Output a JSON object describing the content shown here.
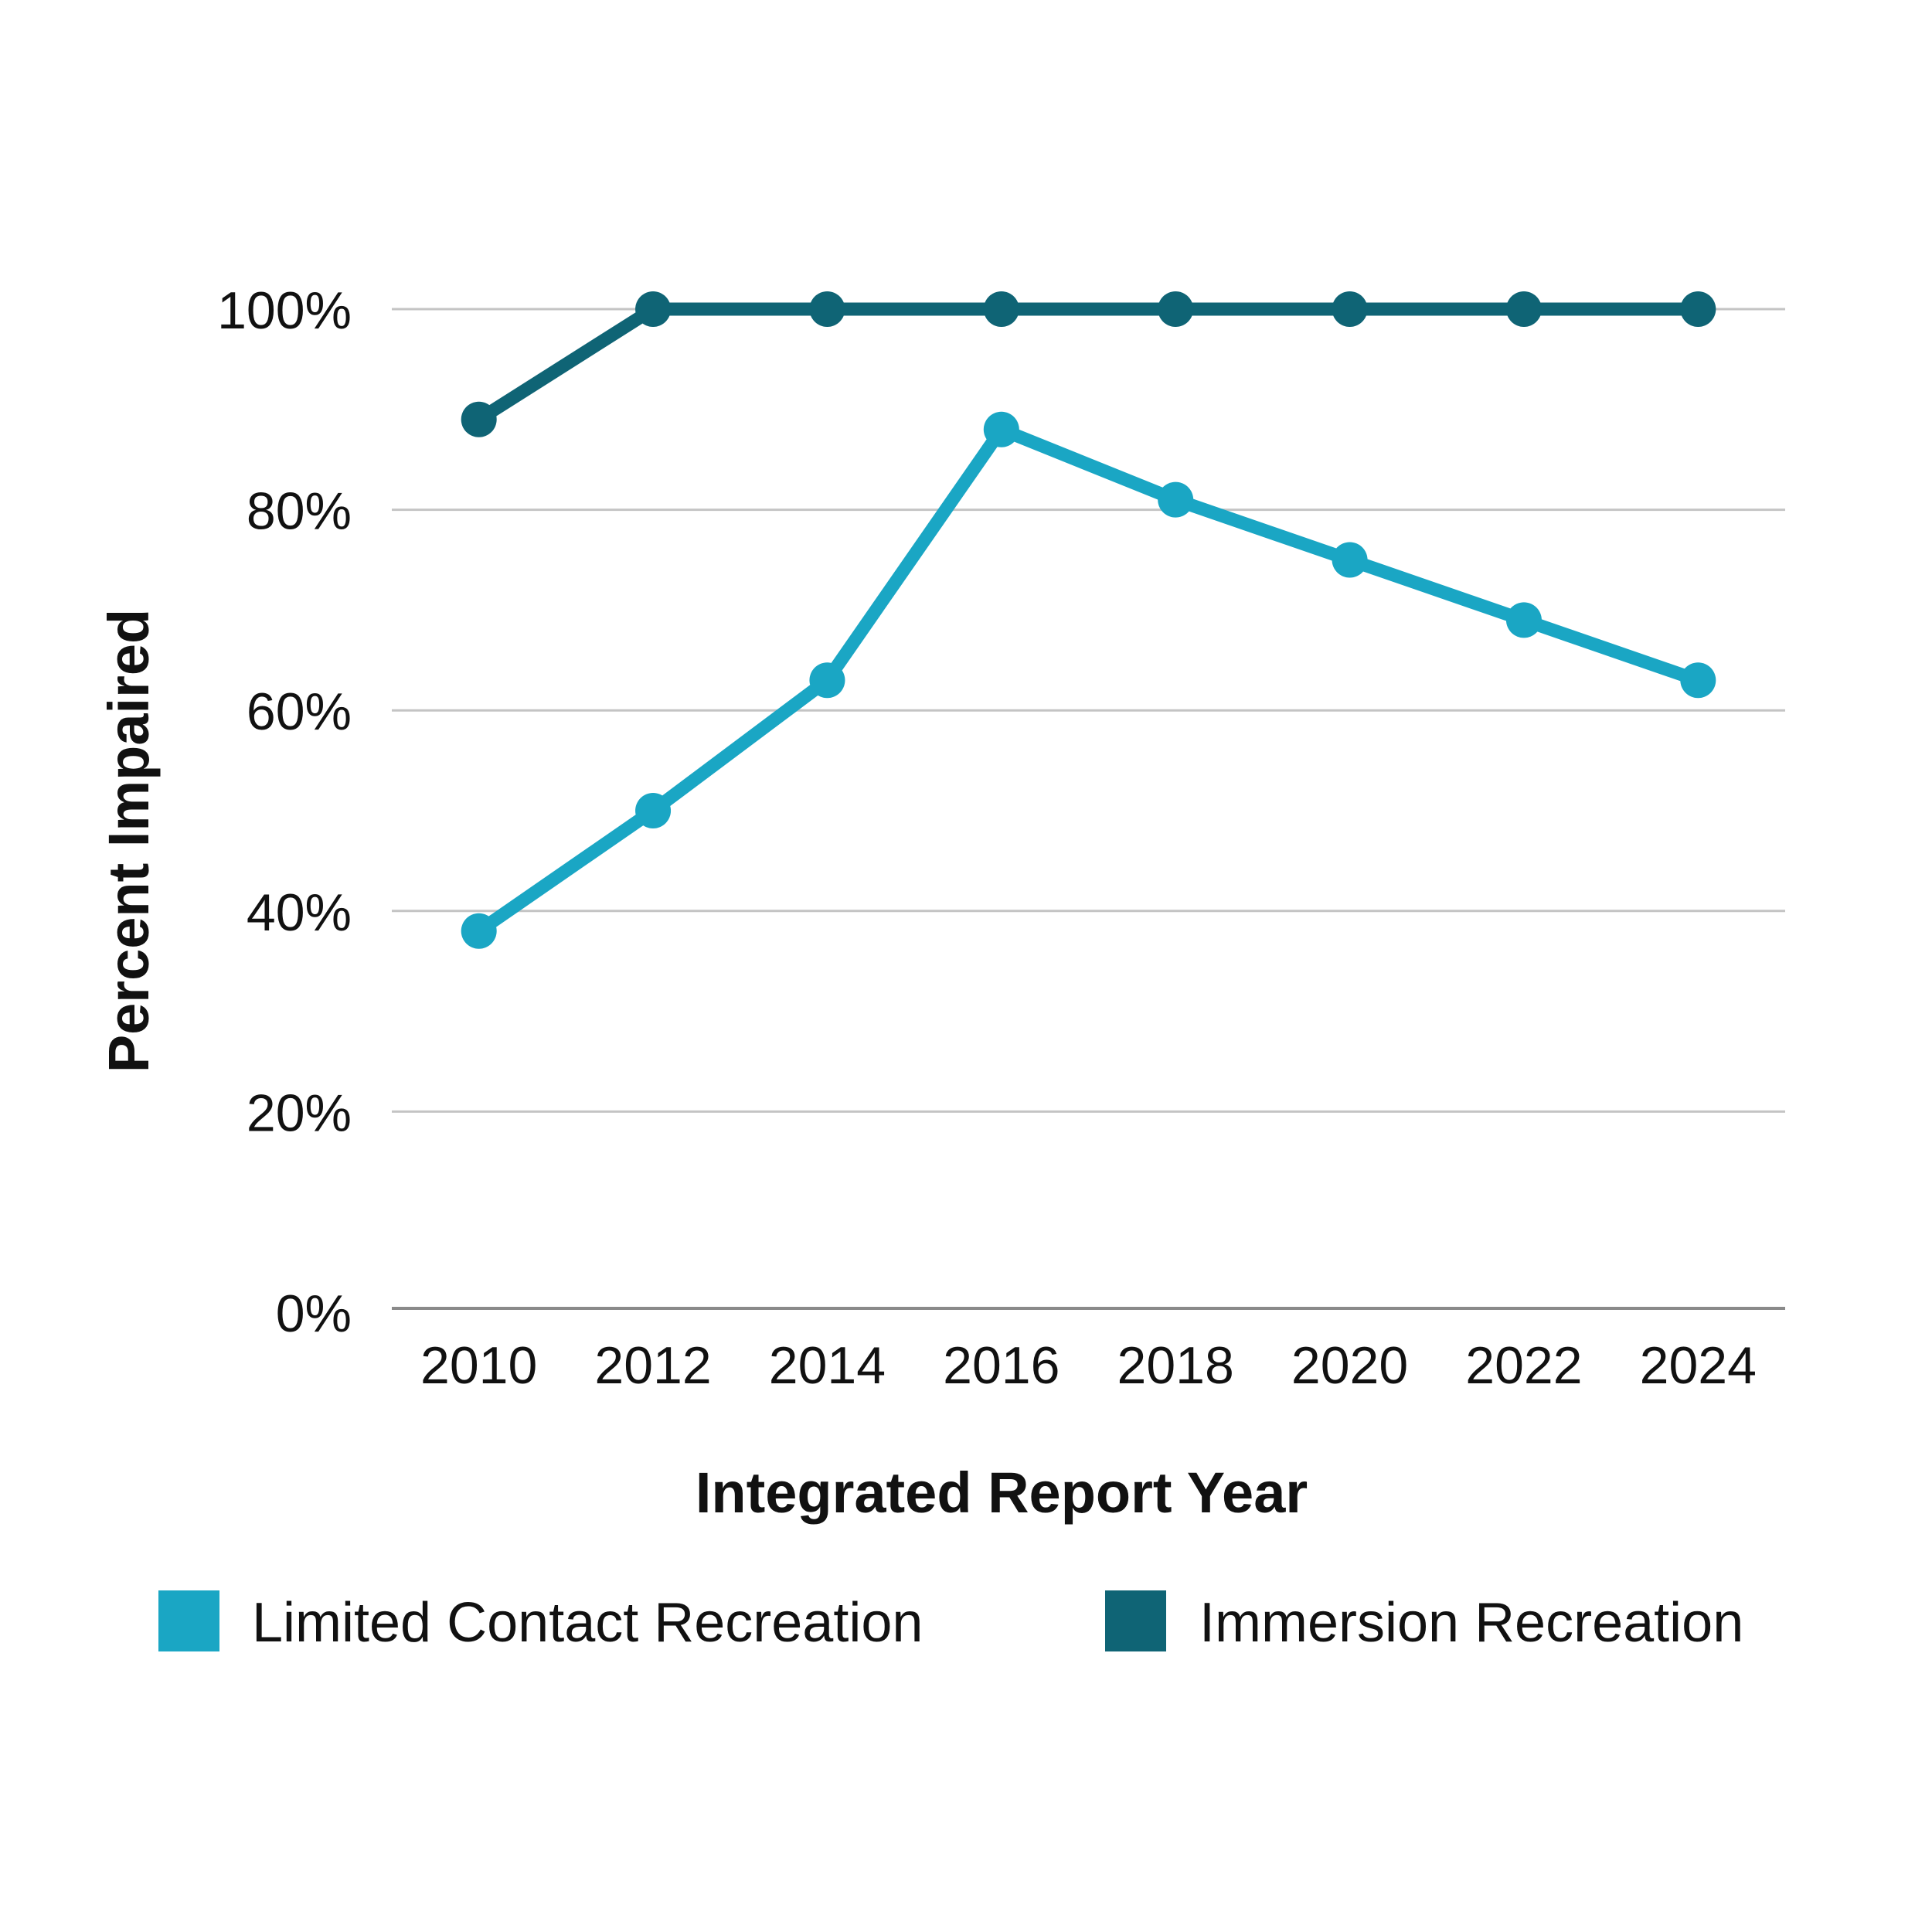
{
  "chart_data": {
    "type": "line",
    "title": "",
    "xlabel": "Integrated Report Year",
    "ylabel": "Percent Impaired",
    "categories": [
      "2010",
      "2012",
      "2014",
      "2016",
      "2018",
      "2020",
      "2022",
      "2024"
    ],
    "ylim": [
      0,
      100
    ],
    "yticks": [
      0,
      20,
      40,
      60,
      80,
      100
    ],
    "ytick_labels": [
      "0%",
      "20%",
      "40%",
      "60%",
      "80%",
      "100%"
    ],
    "grid": true,
    "legend_position": "bottom",
    "series": [
      {
        "name": "Limited Contact Recreation",
        "color": "#1aa6c4",
        "values": [
          38,
          50,
          63,
          88,
          81,
          75,
          69,
          63
        ]
      },
      {
        "name": "Immersion Recreation",
        "color": "#0f6475",
        "values": [
          89,
          100,
          100,
          100,
          100,
          100,
          100,
          100
        ]
      }
    ]
  }
}
